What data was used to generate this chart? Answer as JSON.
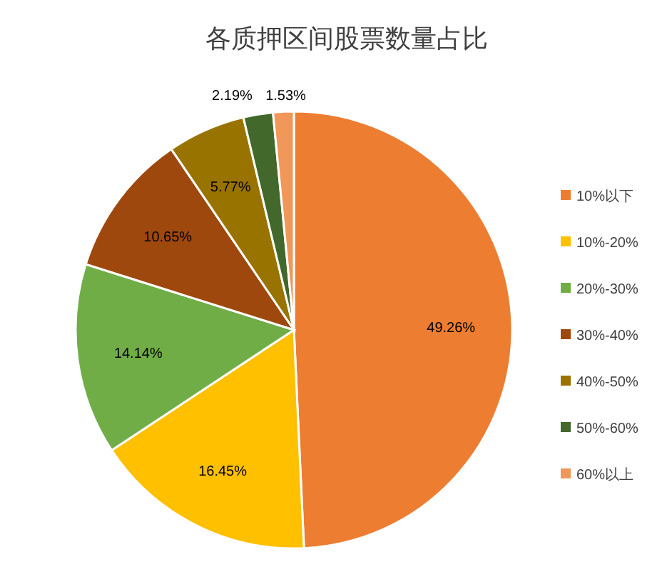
{
  "chart_data": {
    "type": "pie",
    "title": "各质押区间股票数量占比",
    "categories": [
      "10%以下",
      "10%-20%",
      "20%-30%",
      "30%-40%",
      "40%-50%",
      "50%-60%",
      "60%以上"
    ],
    "values": [
      49.26,
      16.45,
      14.14,
      10.65,
      5.77,
      2.19,
      1.53
    ],
    "colors": [
      "#ed7d31",
      "#ffc000",
      "#70ad47",
      "#9e480e",
      "#997300",
      "#43682b",
      "#f1975a"
    ],
    "value_labels": [
      "49.26%",
      "16.45%",
      "14.14%",
      "10.65%",
      "5.77%",
      "2.19%",
      "1.53%"
    ],
    "legend": "right"
  }
}
